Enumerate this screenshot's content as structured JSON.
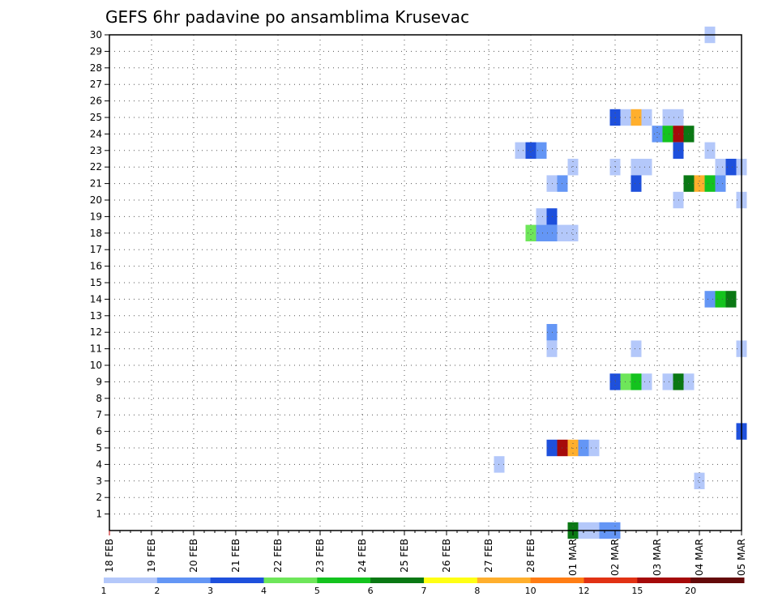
{
  "chart_data": {
    "type": "heatmap",
    "title": "GEFS 6hr padavine po ansamblima Krusevac",
    "xlabel": "",
    "ylabel": "",
    "x_ticks": [
      "18 FEB",
      "19 FEB",
      "20 FEB",
      "21 FEB",
      "22 FEB",
      "23 FEB",
      "24 FEB",
      "25 FEB",
      "26 FEB",
      "27 FEB",
      "28 FEB",
      "01 MAR",
      "02 MAR",
      "03 MAR",
      "04 MAR",
      "05 MAR"
    ],
    "y_ticks": [
      1,
      2,
      3,
      4,
      5,
      6,
      7,
      8,
      9,
      10,
      11,
      12,
      13,
      14,
      15,
      16,
      17,
      18,
      19,
      20,
      21,
      22,
      23,
      24,
      25,
      26,
      27,
      28,
      29,
      30
    ],
    "ylim": [
      0,
      30
    ],
    "x_steps_per_day": 4,
    "grid": true,
    "legend_position": "bottom",
    "legend": {
      "labels": [
        "1",
        "2",
        "3",
        "4",
        "5",
        "6",
        "7",
        "8",
        "10",
        "12",
        "15",
        "20"
      ],
      "colors": [
        "#b4c8fa",
        "#6496f5",
        "#1e50dc",
        "#6ee65a",
        "#14c31e",
        "#0a7814",
        "#ffff14",
        "#ffaf2d",
        "#ff7d14",
        "#e13214",
        "#a50a0a",
        "#640a0a"
      ]
    },
    "cells": [
      {
        "member": 30,
        "step": 57,
        "class": 1
      },
      {
        "member": 25,
        "step": 48,
        "class": 3
      },
      {
        "member": 25,
        "step": 49,
        "class": 1
      },
      {
        "member": 25,
        "step": 50,
        "class": 8
      },
      {
        "member": 25,
        "step": 51,
        "class": 1
      },
      {
        "member": 25,
        "step": 53,
        "class": 1
      },
      {
        "member": 25,
        "step": 54,
        "class": 1
      },
      {
        "member": 24,
        "step": 52,
        "class": 2
      },
      {
        "member": 24,
        "step": 53,
        "class": 5
      },
      {
        "member": 24,
        "step": 54,
        "class": 11
      },
      {
        "member": 24,
        "step": 55,
        "class": 6
      },
      {
        "member": 23,
        "step": 39,
        "class": 1
      },
      {
        "member": 23,
        "step": 40,
        "class": 3
      },
      {
        "member": 23,
        "step": 41,
        "class": 2
      },
      {
        "member": 23,
        "step": 54,
        "class": 3
      },
      {
        "member": 23,
        "step": 57,
        "class": 1
      },
      {
        "member": 22,
        "step": 44,
        "class": 1
      },
      {
        "member": 22,
        "step": 48,
        "class": 1
      },
      {
        "member": 22,
        "step": 50,
        "class": 1
      },
      {
        "member": 22,
        "step": 51,
        "class": 1
      },
      {
        "member": 22,
        "step": 58,
        "class": 1
      },
      {
        "member": 22,
        "step": 59,
        "class": 3
      },
      {
        "member": 22,
        "step": 60,
        "class": 1
      },
      {
        "member": 21,
        "step": 42,
        "class": 1
      },
      {
        "member": 21,
        "step": 43,
        "class": 2
      },
      {
        "member": 21,
        "step": 50,
        "class": 3
      },
      {
        "member": 21,
        "step": 55,
        "class": 6
      },
      {
        "member": 21,
        "step": 56,
        "class": 8
      },
      {
        "member": 21,
        "step": 57,
        "class": 5
      },
      {
        "member": 21,
        "step": 58,
        "class": 2
      },
      {
        "member": 20,
        "step": 54,
        "class": 1
      },
      {
        "member": 20,
        "step": 60,
        "class": 1
      },
      {
        "member": 19,
        "step": 41,
        "class": 1
      },
      {
        "member": 19,
        "step": 42,
        "class": 3
      },
      {
        "member": 18,
        "step": 40,
        "class": 4
      },
      {
        "member": 18,
        "step": 41,
        "class": 2
      },
      {
        "member": 18,
        "step": 42,
        "class": 2
      },
      {
        "member": 18,
        "step": 43,
        "class": 1
      },
      {
        "member": 18,
        "step": 44,
        "class": 1
      },
      {
        "member": 14,
        "step": 57,
        "class": 2
      },
      {
        "member": 14,
        "step": 58,
        "class": 5
      },
      {
        "member": 14,
        "step": 59,
        "class": 6
      },
      {
        "member": 12,
        "step": 42,
        "class": 2
      },
      {
        "member": 11,
        "step": 42,
        "class": 1
      },
      {
        "member": 11,
        "step": 50,
        "class": 1
      },
      {
        "member": 11,
        "step": 60,
        "class": 1
      },
      {
        "member": 9,
        "step": 48,
        "class": 3
      },
      {
        "member": 9,
        "step": 49,
        "class": 4
      },
      {
        "member": 9,
        "step": 50,
        "class": 5
      },
      {
        "member": 9,
        "step": 51,
        "class": 1
      },
      {
        "member": 9,
        "step": 53,
        "class": 1
      },
      {
        "member": 9,
        "step": 54,
        "class": 6
      },
      {
        "member": 9,
        "step": 55,
        "class": 1
      },
      {
        "member": 6,
        "step": 60,
        "class": 3
      },
      {
        "member": 5,
        "step": 42,
        "class": 3
      },
      {
        "member": 5,
        "step": 43,
        "class": 11
      },
      {
        "member": 5,
        "step": 44,
        "class": 8
      },
      {
        "member": 5,
        "step": 45,
        "class": 2
      },
      {
        "member": 5,
        "step": 46,
        "class": 1
      },
      {
        "member": 4,
        "step": 37,
        "class": 1
      },
      {
        "member": 3,
        "step": 56,
        "class": 1
      },
      {
        "member": 0,
        "step": 44,
        "class": 6
      },
      {
        "member": 0,
        "step": 45,
        "class": 1
      },
      {
        "member": 0,
        "step": 46,
        "class": 1
      },
      {
        "member": 0,
        "step": 47,
        "class": 2
      },
      {
        "member": 0,
        "step": 48,
        "class": 2
      }
    ]
  }
}
